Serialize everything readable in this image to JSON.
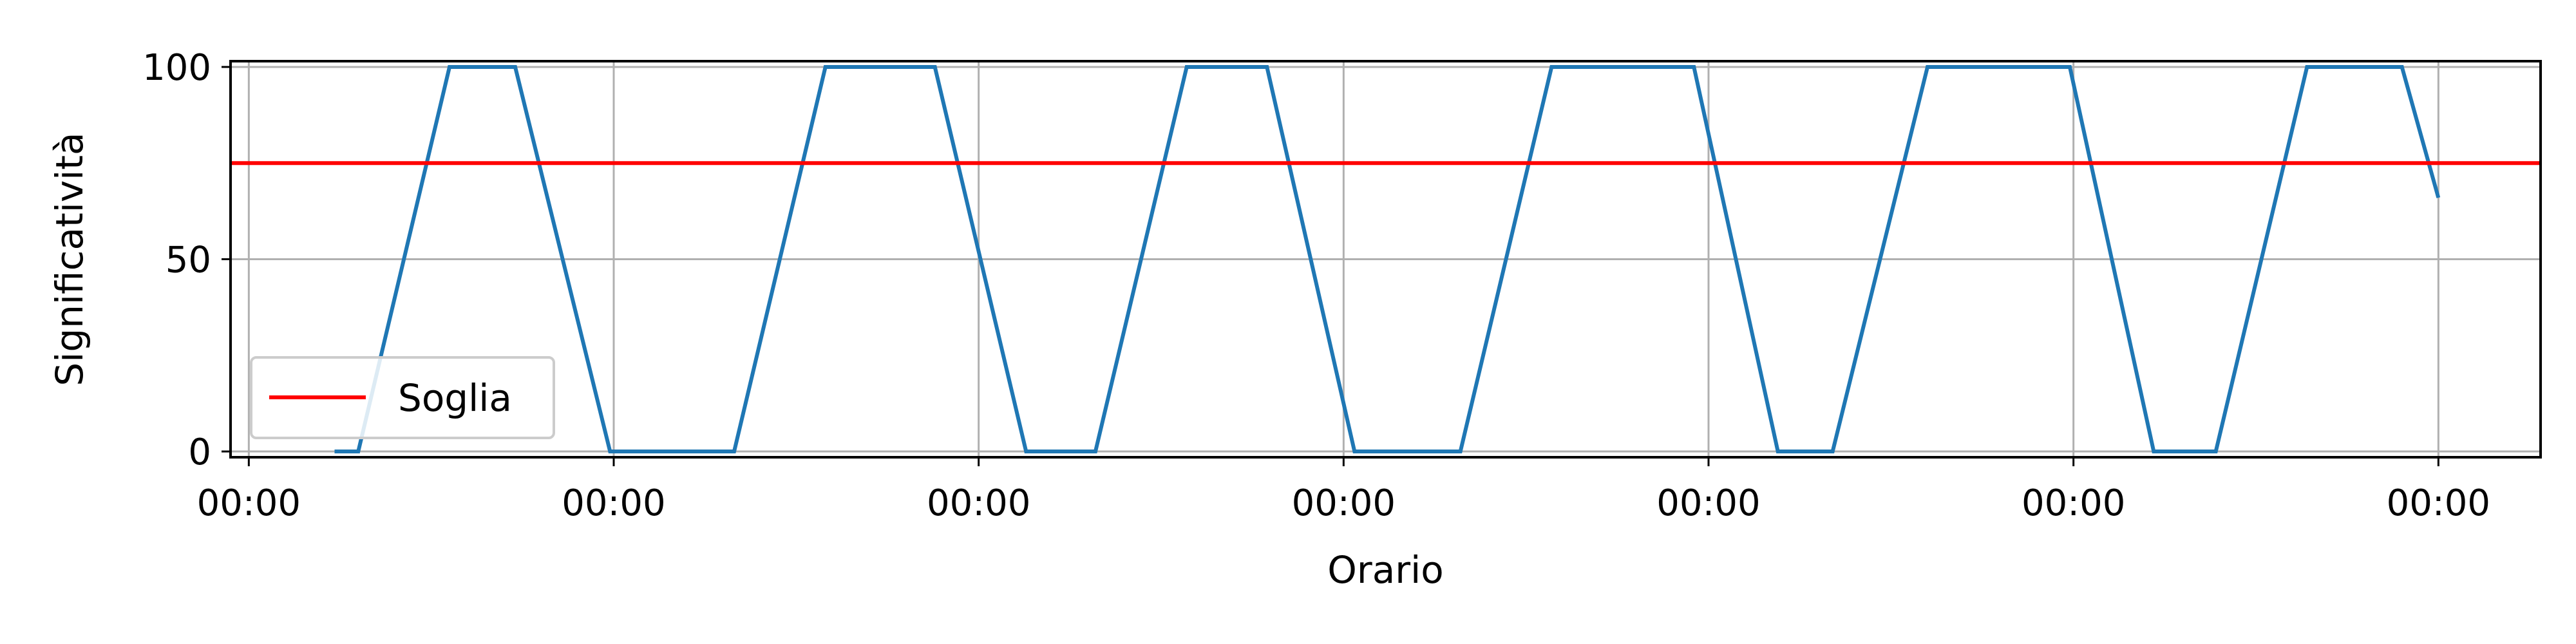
{
  "chart_data": {
    "type": "line",
    "xlabel": "Orario",
    "ylabel": "Significatività",
    "ylim": [
      0,
      100
    ],
    "xlim": [
      -0.05,
      6.28
    ],
    "grid": true,
    "legend_placement": "lower-left",
    "x_ticks": [
      {
        "value": 0,
        "label": "00:00"
      },
      {
        "value": 1,
        "label": "00:00"
      },
      {
        "value": 2,
        "label": "00:00"
      },
      {
        "value": 3,
        "label": "00:00"
      },
      {
        "value": 4,
        "label": "00:00"
      },
      {
        "value": 5,
        "label": "00:00"
      },
      {
        "value": 6,
        "label": "00:00"
      }
    ],
    "y_ticks": [
      {
        "value": 0,
        "label": "0"
      },
      {
        "value": 50,
        "label": "50"
      },
      {
        "value": 100,
        "label": "100"
      }
    ],
    "series": [
      {
        "color": "#1f77b4",
        "x": [
          0.235,
          0.3,
          0.55,
          0.73,
          0.99,
          1.33,
          1.58,
          1.88,
          2.13,
          2.32,
          2.57,
          2.79,
          3.03,
          3.32,
          3.57,
          3.96,
          4.19,
          4.34,
          4.6,
          4.99,
          5.22,
          5.39,
          5.64,
          5.9,
          6.0
        ],
        "y": [
          0,
          0,
          100,
          100,
          0,
          0,
          100,
          100,
          0,
          0,
          100,
          100,
          0,
          0,
          100,
          100,
          0,
          0,
          100,
          100,
          0,
          0,
          100,
          100,
          66
        ]
      },
      {
        "name": "Soglia",
        "color": "#ff0000",
        "x": [
          -0.05,
          6.28
        ],
        "y": [
          75,
          75
        ]
      }
    ]
  }
}
